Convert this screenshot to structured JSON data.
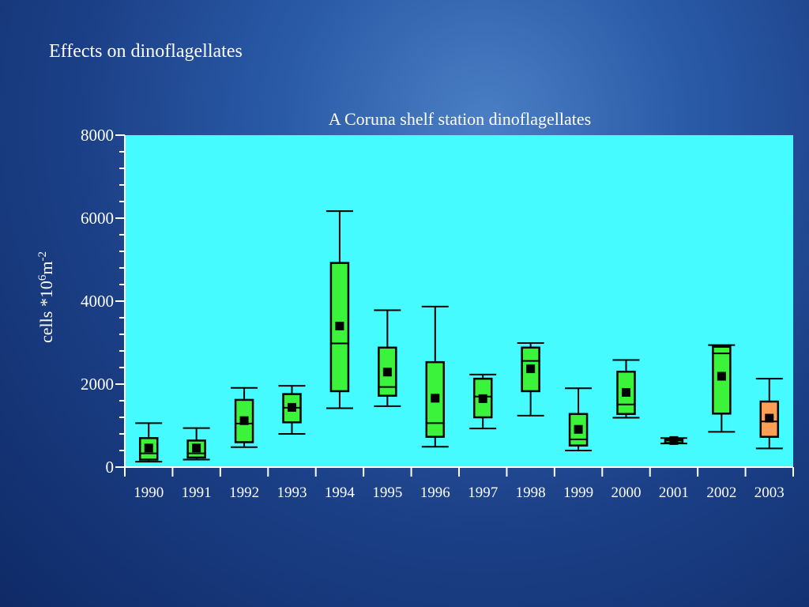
{
  "slide_title": "Effects on dinoflagellates",
  "colors": {
    "plot_background": "#45fbff",
    "box_default": "#3cf33c",
    "box_highlight": "#ff9f55",
    "text": "#ffffff",
    "chart_title_text": "#ffffff",
    "axis_line": "#000000"
  },
  "chart_data": {
    "type": "boxplot",
    "title": "A Coruna shelf station dinoflagellates",
    "xlabel": "",
    "ylabel": {
      "base": "cells *10",
      "exponent": "6",
      "unit": "m",
      "unit_exponent": "-2"
    },
    "ylim": [
      0,
      8000
    ],
    "yticks": [
      0,
      2000,
      4000,
      6000,
      8000
    ],
    "ytick_labels": [
      "0",
      "2000",
      "4000",
      "6000",
      "8000"
    ],
    "categories": [
      "1990",
      "1991",
      "1992",
      "1993",
      "1994",
      "1995",
      "1996",
      "1997",
      "1998",
      "1999",
      "2000",
      "2001",
      "2002",
      "2003"
    ],
    "boxes": [
      {
        "year": "1990",
        "min": 130,
        "q1": 180,
        "median": 330,
        "q3": 700,
        "max": 1060,
        "mean": 460,
        "highlight": false
      },
      {
        "year": "1991",
        "min": 180,
        "q1": 230,
        "median": 330,
        "q3": 640,
        "max": 940,
        "mean": 460,
        "highlight": false
      },
      {
        "year": "1992",
        "min": 480,
        "q1": 600,
        "median": 1050,
        "q3": 1620,
        "max": 1910,
        "mean": 1120,
        "highlight": false
      },
      {
        "year": "1993",
        "min": 800,
        "q1": 1080,
        "median": 1430,
        "q3": 1760,
        "max": 1960,
        "mean": 1440,
        "highlight": false
      },
      {
        "year": "1994",
        "min": 1420,
        "q1": 1830,
        "median": 2980,
        "q3": 4920,
        "max": 6170,
        "mean": 3400,
        "highlight": false
      },
      {
        "year": "1995",
        "min": 1470,
        "q1": 1720,
        "median": 1930,
        "q3": 2880,
        "max": 3780,
        "mean": 2290,
        "highlight": false
      },
      {
        "year": "1996",
        "min": 490,
        "q1": 730,
        "median": 1060,
        "q3": 2530,
        "max": 3870,
        "mean": 1660,
        "highlight": false
      },
      {
        "year": "1997",
        "min": 930,
        "q1": 1200,
        "median": 1700,
        "q3": 2130,
        "max": 2230,
        "mean": 1650,
        "highlight": false
      },
      {
        "year": "1998",
        "min": 1240,
        "q1": 1830,
        "median": 2560,
        "q3": 2880,
        "max": 2990,
        "mean": 2370,
        "highlight": false
      },
      {
        "year": "1999",
        "min": 400,
        "q1": 520,
        "median": 670,
        "q3": 1280,
        "max": 1900,
        "mean": 910,
        "highlight": false
      },
      {
        "year": "2000",
        "min": 1190,
        "q1": 1280,
        "median": 1510,
        "q3": 2300,
        "max": 2580,
        "mean": 1800,
        "highlight": false
      },
      {
        "year": "2001",
        "min": 570,
        "q1": 580,
        "median": 640,
        "q3": 680,
        "max": 700,
        "mean": 640,
        "highlight": false
      },
      {
        "year": "2002",
        "min": 850,
        "q1": 1290,
        "median": 2740,
        "q3": 2900,
        "max": 2940,
        "mean": 2190,
        "highlight": false
      },
      {
        "year": "2003",
        "min": 450,
        "q1": 730,
        "median": 1100,
        "q3": 1580,
        "max": 2130,
        "mean": 1180,
        "highlight": true
      }
    ],
    "grid": false,
    "legend": "none"
  }
}
